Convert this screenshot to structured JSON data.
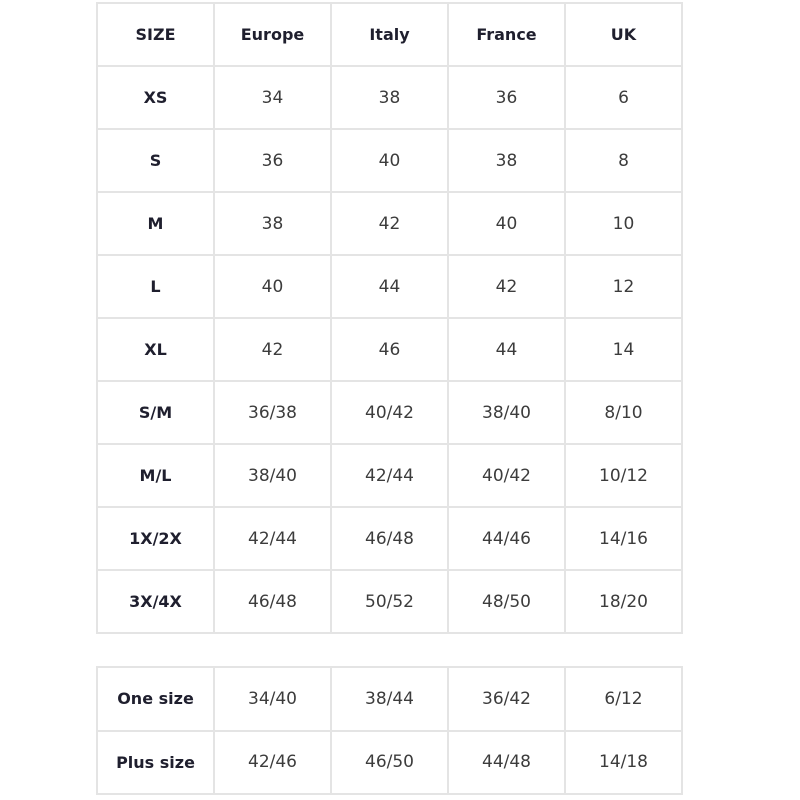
{
  "main_table": {
    "headers": [
      "SIZE",
      "Europe",
      "Italy",
      "France",
      "UK"
    ],
    "rows": [
      [
        "XS",
        "34",
        "38",
        "36",
        "6"
      ],
      [
        "S",
        "36",
        "40",
        "38",
        "8"
      ],
      [
        "M",
        "38",
        "42",
        "40",
        "10"
      ],
      [
        "L",
        "40",
        "44",
        "42",
        "12"
      ],
      [
        "XL",
        "42",
        "46",
        "44",
        "14"
      ],
      [
        "S/M",
        "36/38",
        "40/42",
        "38/40",
        "8/10"
      ],
      [
        "M/L",
        "38/40",
        "42/44",
        "40/42",
        "10/12"
      ],
      [
        "1X/2X",
        "42/44",
        "46/48",
        "44/46",
        "14/16"
      ],
      [
        "3X/4X",
        "46/48",
        "50/52",
        "48/50",
        "18/20"
      ]
    ]
  },
  "secondary_table": {
    "rows": [
      [
        "One size",
        "34/40",
        "38/44",
        "36/42",
        "6/12"
      ],
      [
        "Plus size",
        "42/46",
        "46/50",
        "44/48",
        "14/18"
      ]
    ]
  }
}
